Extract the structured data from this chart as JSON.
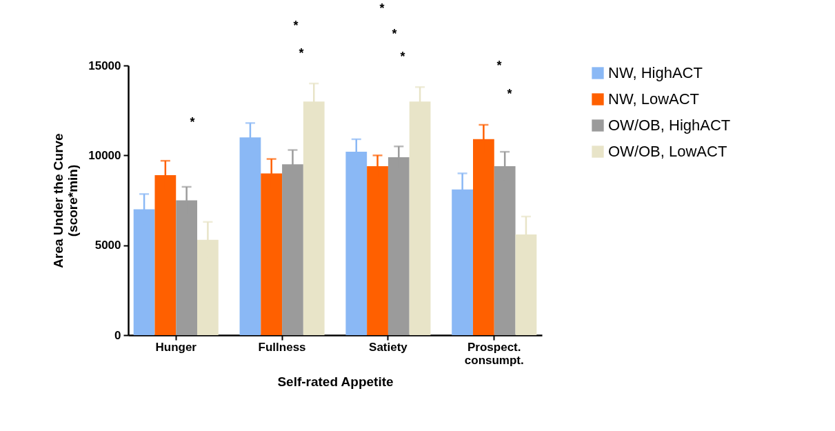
{
  "chart_data": {
    "type": "bar",
    "xlabel": "Self-rated Appetite",
    "ylabel": "Area Under the Curve\n(score*min)",
    "categories": [
      "Hunger",
      "Fullness",
      "Satiety",
      "Prospect.\nconsumpt."
    ],
    "series": [
      {
        "name": "NW, HighACT",
        "color": "#8ab8f5",
        "values": [
          7000,
          11000,
          10200,
          8100
        ],
        "errors": [
          850,
          800,
          700,
          900
        ]
      },
      {
        "name": "NW, LowACT",
        "color": "#ff6000",
        "values": [
          8900,
          9000,
          9400,
          10900
        ],
        "errors": [
          800,
          800,
          600,
          800
        ]
      },
      {
        "name": "OW/OB, HighACT",
        "color": "#9b9b9b",
        "values": [
          7500,
          9500,
          9900,
          9400
        ],
        "errors": [
          750,
          800,
          600,
          800
        ]
      },
      {
        "name": "OW/OB, LowACT",
        "color": "#e8e4c8",
        "values": [
          5300,
          13000,
          13000,
          5600
        ],
        "errors": [
          1000,
          1000,
          800,
          1000
        ]
      }
    ],
    "ylim": [
      0,
      15000
    ],
    "yticks": [
      0,
      5000,
      10000,
      15000
    ],
    "legend": "right",
    "annotations": [
      "*",
      "*",
      "*",
      "*",
      "*",
      "*",
      "*",
      "*"
    ]
  }
}
